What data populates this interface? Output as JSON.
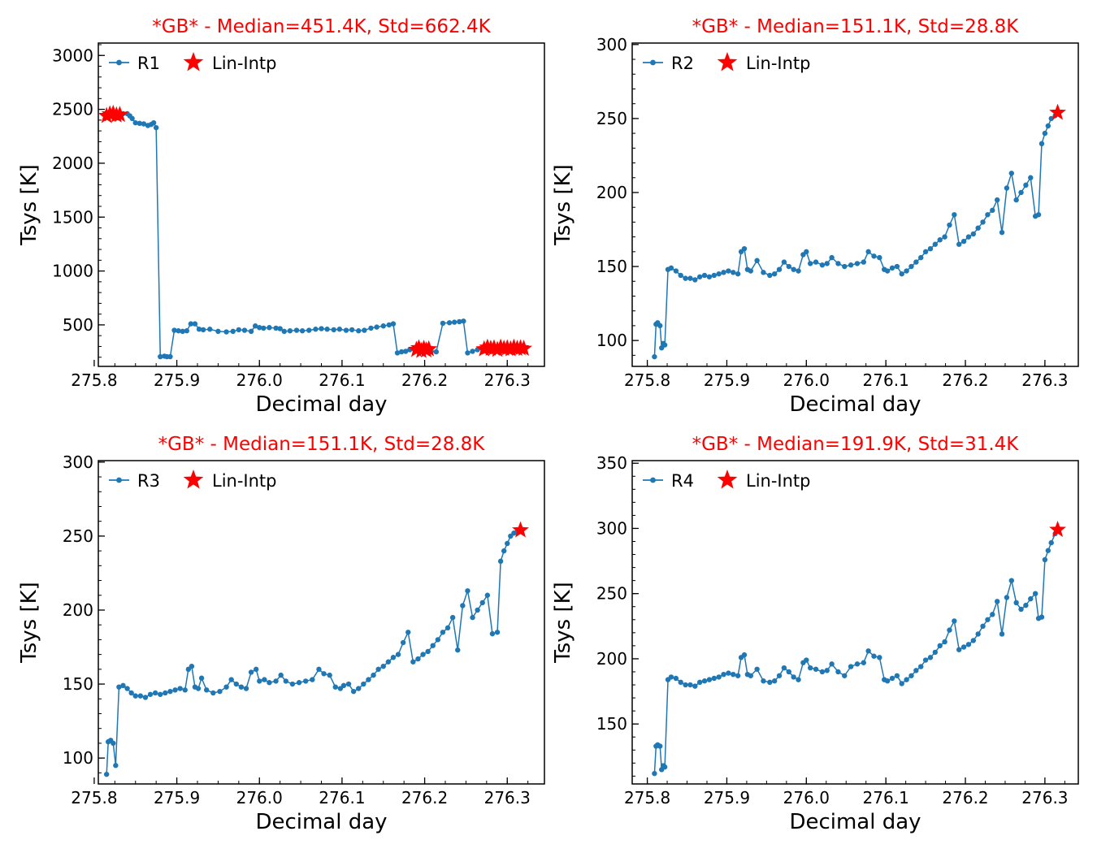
{
  "chart_data": [
    {
      "type": "line",
      "title": "*GB* - Median=451.4K, Std=662.4K",
      "xlabel": "Decimal day",
      "ylabel": "Tsys [K]",
      "xlim": [
        275.805,
        276.345
      ],
      "ylim": [
        115,
        3115
      ],
      "xticks": [
        275.8,
        275.9,
        276.0,
        276.1,
        276.2,
        276.3
      ],
      "yticks": [
        500,
        1000,
        1500,
        2000,
        2500,
        3000
      ],
      "xtick_labels": [
        "275.8",
        "275.9",
        "276.0",
        "276.1",
        "276.2",
        "276.3"
      ],
      "ytick_labels": [
        "500",
        "1000",
        "1500",
        "2000",
        "2500",
        "3000"
      ],
      "legend_placement": "top-left",
      "series": [
        {
          "name": "R1",
          "marker": "dot",
          "color": "#1f77b4",
          "x": [
            275.815,
            275.82,
            275.825,
            275.83,
            275.835,
            275.84,
            275.843,
            275.846,
            275.85,
            275.855,
            275.86,
            275.865,
            275.869,
            275.872,
            275.875,
            275.88,
            275.885,
            275.888,
            275.892,
            275.897,
            275.902,
            275.907,
            275.912,
            275.917,
            275.922,
            275.927,
            275.932,
            275.94,
            275.95,
            275.96,
            275.968,
            275.975,
            275.982,
            275.99,
            275.995,
            276.0,
            276.005,
            276.012,
            276.02,
            276.025,
            276.03,
            276.037,
            276.045,
            276.052,
            276.06,
            276.068,
            276.075,
            276.082,
            276.09,
            276.097,
            276.105,
            276.112,
            276.12,
            276.127,
            276.135,
            276.142,
            276.15,
            276.157,
            276.162,
            276.167,
            276.172,
            276.177,
            276.182,
            276.187,
            276.192,
            276.197,
            276.202,
            276.208,
            276.214,
            276.222,
            276.23,
            276.236,
            276.242,
            276.247,
            276.252,
            276.258,
            276.264,
            276.27,
            276.276,
            276.282,
            276.288,
            276.294,
            276.3,
            276.306,
            276.312,
            276.318
          ],
          "y": [
            2450,
            2455,
            2445,
            2450,
            2460,
            2460,
            2440,
            2415,
            2375,
            2370,
            2365,
            2350,
            2360,
            2375,
            2330,
            205,
            210,
            205,
            205,
            450,
            445,
            440,
            445,
            510,
            510,
            460,
            455,
            460,
            440,
            435,
            440,
            455,
            450,
            440,
            490,
            475,
            470,
            475,
            470,
            465,
            440,
            445,
            450,
            445,
            450,
            460,
            465,
            460,
            455,
            460,
            450,
            455,
            445,
            450,
            470,
            480,
            490,
            500,
            510,
            240,
            250,
            255,
            270,
            275,
            270,
            265,
            265,
            255,
            250,
            515,
            520,
            525,
            530,
            535,
            240,
            255,
            270,
            280,
            275,
            290,
            285,
            280,
            280,
            285,
            290,
            295
          ]
        },
        {
          "name": "Lin-Intp",
          "marker": "star",
          "color": "#ff0000",
          "x": [
            275.815,
            275.819,
            275.823,
            275.827,
            275.831,
            276.19,
            276.193,
            276.196,
            276.199,
            276.202,
            276.205,
            276.272,
            276.276,
            276.28,
            276.284,
            276.288,
            276.292,
            276.296,
            276.3,
            276.304,
            276.308,
            276.312,
            276.316,
            276.32
          ],
          "y": [
            2440,
            2455,
            2460,
            2445,
            2450,
            270,
            285,
            260,
            280,
            265,
            275,
            275,
            290,
            280,
            285,
            270,
            290,
            280,
            285,
            275,
            290,
            280,
            285,
            280
          ]
        }
      ]
    },
    {
      "type": "line",
      "title": "*GB* - Median=151.1K, Std=28.8K",
      "xlabel": "Decimal day",
      "ylabel": "Tsys [K]",
      "xlim": [
        275.781,
        276.342
      ],
      "ylim": [
        82.5,
        301
      ],
      "xticks": [
        275.8,
        275.9,
        276.0,
        276.1,
        276.2,
        276.3
      ],
      "yticks": [
        100,
        150,
        200,
        250,
        300
      ],
      "xtick_labels": [
        "275.8",
        "275.9",
        "276.0",
        "276.1",
        "276.2",
        "276.3"
      ],
      "ytick_labels": [
        "100",
        "150",
        "200",
        "250",
        "300"
      ],
      "legend_placement": "top-left",
      "series": [
        {
          "name": "R2",
          "marker": "dot",
          "color": "#1f77b4",
          "x": [
            275.809,
            275.811,
            275.813,
            275.816,
            275.818,
            275.82,
            275.822,
            275.826,
            275.83,
            275.836,
            275.842,
            275.848,
            275.854,
            275.86,
            275.866,
            275.872,
            275.878,
            275.884,
            275.89,
            275.896,
            275.902,
            275.908,
            275.914,
            275.918,
            275.922,
            275.926,
            275.93,
            275.938,
            275.946,
            275.954,
            275.96,
            275.966,
            275.972,
            275.978,
            275.984,
            275.99,
            275.996,
            276.0,
            276.005,
            276.012,
            276.02,
            276.026,
            276.032,
            276.04,
            276.048,
            276.056,
            276.064,
            276.072,
            276.078,
            276.085,
            276.092,
            276.098,
            276.102,
            276.108,
            276.114,
            276.12,
            276.126,
            276.132,
            276.138,
            276.144,
            276.15,
            276.156,
            276.162,
            276.168,
            276.174,
            276.18,
            276.186,
            276.192,
            276.198,
            276.204,
            276.21,
            276.216,
            276.222,
            276.228,
            276.234,
            276.24,
            276.246,
            276.252,
            276.258,
            276.264,
            276.27,
            276.276,
            276.282,
            276.288,
            276.292,
            276.296,
            276.3,
            276.304,
            276.308,
            276.313
          ],
          "y": [
            89,
            111,
            112,
            110,
            95,
            98,
            97,
            148,
            149,
            147,
            144,
            142,
            142,
            141,
            143,
            144,
            143,
            144,
            145,
            146,
            147,
            146,
            145,
            160,
            162,
            148,
            147,
            154,
            146,
            144,
            145,
            148,
            153,
            150,
            148,
            147,
            158,
            160,
            152,
            153,
            151,
            152,
            156,
            152,
            150,
            151,
            152,
            153,
            160,
            157,
            156,
            148,
            147,
            149,
            150,
            145,
            147,
            150,
            153,
            156,
            160,
            162,
            165,
            168,
            170,
            178,
            185,
            165,
            167,
            170,
            172,
            176,
            180,
            185,
            188,
            195,
            173,
            203,
            213,
            195,
            200,
            205,
            210,
            184,
            185,
            233,
            240,
            245,
            250,
            252
          ]
        },
        {
          "name": "Lin-Intp",
          "marker": "star",
          "color": "#ff0000",
          "x": [
            276.316
          ],
          "y": [
            254
          ]
        }
      ]
    },
    {
      "type": "line",
      "title": "*GB* - Median=151.1K, Std=28.8K",
      "xlabel": "Decimal day",
      "ylabel": "Tsys [K]",
      "xlim": [
        275.805,
        276.345
      ],
      "ylim": [
        82.5,
        301
      ],
      "xticks": [
        275.8,
        275.9,
        276.0,
        276.1,
        276.2,
        276.3
      ],
      "yticks": [
        100,
        150,
        200,
        250,
        300
      ],
      "xtick_labels": [
        "275.8",
        "275.9",
        "276.0",
        "276.1",
        "276.2",
        "276.3"
      ],
      "ytick_labels": [
        "100",
        "150",
        "200",
        "250",
        "300"
      ],
      "legend_placement": "top-left",
      "series": [
        {
          "name": "R3",
          "marker": "dot",
          "color": "#1f77b4",
          "x": [
            275.815,
            275.817,
            275.82,
            275.823,
            275.826,
            275.83,
            275.835,
            275.84,
            275.845,
            275.85,
            275.856,
            275.862,
            275.868,
            275.874,
            275.88,
            275.886,
            275.892,
            275.898,
            275.904,
            275.91,
            275.914,
            275.918,
            275.922,
            275.926,
            275.93,
            275.936,
            275.944,
            275.952,
            275.96,
            275.966,
            275.972,
            275.978,
            275.984,
            275.99,
            275.996,
            276.0,
            276.006,
            276.012,
            276.02,
            276.026,
            276.032,
            276.04,
            276.048,
            276.056,
            276.064,
            276.072,
            276.078,
            276.085,
            276.092,
            276.098,
            276.102,
            276.108,
            276.114,
            276.12,
            276.126,
            276.132,
            276.138,
            276.144,
            276.15,
            276.156,
            276.162,
            276.168,
            276.174,
            276.18,
            276.186,
            276.192,
            276.198,
            276.204,
            276.21,
            276.216,
            276.222,
            276.228,
            276.234,
            276.24,
            276.246,
            276.252,
            276.258,
            276.264,
            276.27,
            276.276,
            276.282,
            276.288,
            276.292,
            276.296,
            276.3,
            276.304,
            276.308,
            276.312
          ],
          "y": [
            89,
            111,
            112,
            110,
            95,
            148,
            149,
            147,
            144,
            142,
            142,
            141,
            143,
            144,
            143,
            144,
            145,
            146,
            147,
            146,
            160,
            162,
            148,
            147,
            154,
            146,
            144,
            145,
            148,
            153,
            150,
            148,
            147,
            158,
            160,
            152,
            153,
            151,
            152,
            156,
            152,
            150,
            151,
            152,
            153,
            160,
            157,
            156,
            148,
            147,
            149,
            150,
            145,
            147,
            150,
            153,
            156,
            160,
            162,
            165,
            168,
            170,
            178,
            185,
            165,
            167,
            170,
            172,
            176,
            180,
            185,
            188,
            195,
            173,
            203,
            213,
            195,
            200,
            205,
            210,
            184,
            185,
            233,
            240,
            245,
            250,
            252,
            253
          ]
        },
        {
          "name": "Lin-Intp",
          "marker": "star",
          "color": "#ff0000",
          "x": [
            276.316
          ],
          "y": [
            254
          ]
        }
      ]
    },
    {
      "type": "line",
      "title": "*GB* - Median=191.9K, Std=31.4K",
      "xlabel": "Decimal day",
      "ylabel": "Tsys [K]",
      "xlim": [
        275.781,
        276.342
      ],
      "ylim": [
        104,
        352
      ],
      "xticks": [
        275.8,
        275.9,
        276.0,
        276.1,
        276.2,
        276.3
      ],
      "yticks": [
        150,
        200,
        250,
        300,
        350
      ],
      "xtick_labels": [
        "275.8",
        "275.9",
        "276.0",
        "276.1",
        "276.2",
        "276.3"
      ],
      "ytick_labels": [
        "150",
        "200",
        "250",
        "300",
        "350"
      ],
      "legend_placement": "top-left",
      "series": [
        {
          "name": "R4",
          "marker": "dot",
          "color": "#1f77b4",
          "x": [
            275.809,
            275.811,
            275.813,
            275.816,
            275.818,
            275.82,
            275.822,
            275.826,
            275.83,
            275.836,
            275.842,
            275.848,
            275.854,
            275.86,
            275.866,
            275.872,
            275.878,
            275.884,
            275.89,
            275.896,
            275.902,
            275.908,
            275.914,
            275.918,
            275.922,
            275.926,
            275.93,
            275.938,
            275.946,
            275.954,
            275.96,
            275.966,
            275.972,
            275.978,
            275.984,
            275.99,
            275.996,
            276.0,
            276.005,
            276.012,
            276.02,
            276.026,
            276.032,
            276.04,
            276.048,
            276.056,
            276.064,
            276.072,
            276.078,
            276.085,
            276.092,
            276.098,
            276.102,
            276.108,
            276.114,
            276.12,
            276.126,
            276.132,
            276.138,
            276.144,
            276.15,
            276.156,
            276.162,
            276.168,
            276.174,
            276.18,
            276.186,
            276.192,
            276.198,
            276.204,
            276.21,
            276.216,
            276.222,
            276.228,
            276.234,
            276.24,
            276.246,
            276.252,
            276.258,
            276.264,
            276.27,
            276.276,
            276.282,
            276.288,
            276.292,
            276.296,
            276.3,
            276.304,
            276.308,
            276.313
          ],
          "y": [
            112,
            133,
            134,
            133,
            115,
            118,
            117,
            184,
            186,
            185,
            182,
            180,
            180,
            179,
            182,
            183,
            184,
            185,
            186,
            188,
            189,
            188,
            187,
            201,
            203,
            188,
            187,
            192,
            183,
            182,
            183,
            187,
            193,
            190,
            186,
            184,
            197,
            199,
            193,
            192,
            190,
            191,
            196,
            190,
            187,
            194,
            196,
            197,
            206,
            202,
            201,
            184,
            183,
            185,
            187,
            181,
            184,
            187,
            191,
            194,
            199,
            201,
            205,
            210,
            213,
            222,
            229,
            207,
            209,
            211,
            214,
            219,
            225,
            230,
            234,
            244,
            219,
            247,
            260,
            243,
            238,
            241,
            246,
            250,
            231,
            232,
            276,
            283,
            289,
            296
          ]
        },
        {
          "name": "Lin-Intp",
          "marker": "star",
          "color": "#ff0000",
          "x": [
            276.316
          ],
          "y": [
            299
          ]
        }
      ]
    }
  ]
}
